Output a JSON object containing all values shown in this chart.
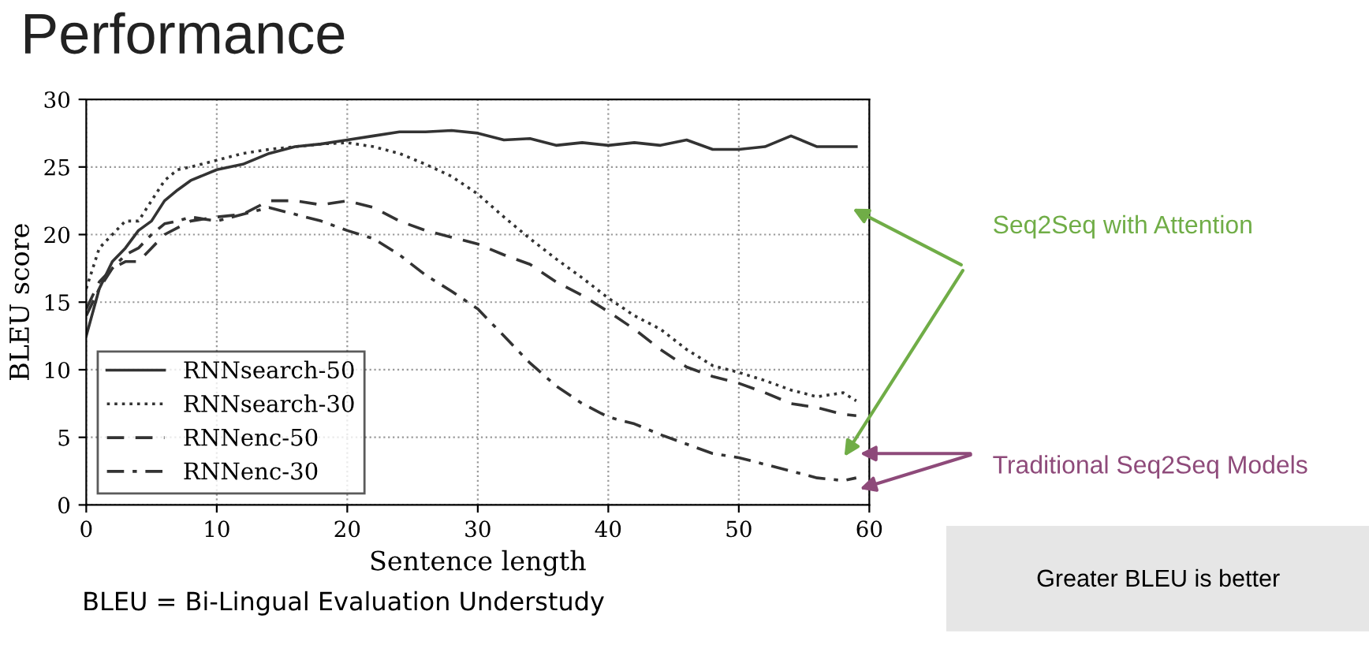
{
  "chart_data": {
    "type": "line",
    "title": "Performance",
    "xlabel": "Sentence length",
    "ylabel": "BLEU score",
    "x": [
      0,
      1,
      2,
      3,
      4,
      5,
      6,
      7,
      8,
      10,
      12,
      14,
      16,
      18,
      20,
      22,
      24,
      26,
      28,
      30,
      32,
      34,
      36,
      38,
      40,
      42,
      44,
      46,
      48,
      50,
      52,
      54,
      56,
      58,
      59
    ],
    "series": [
      {
        "name": "RNNsearch-50",
        "color": "#333333",
        "line_style": "solid",
        "values": [
          12.5,
          16,
          18,
          19,
          20.3,
          21,
          22.5,
          23.3,
          24,
          24.8,
          25.2,
          26,
          26.5,
          26.7,
          27,
          27.3,
          27.6,
          27.6,
          27.7,
          27.5,
          27.0,
          27.1,
          26.6,
          26.8,
          26.6,
          26.8,
          26.6,
          27,
          26.3,
          26.3,
          26.5,
          27.3,
          26.5,
          26.5,
          26.5
        ]
      },
      {
        "name": "RNNsearch-30",
        "color": "#333333",
        "line_style": "dotted",
        "values": [
          16,
          19,
          20,
          21,
          21,
          22.5,
          24,
          24.8,
          25,
          25.5,
          26,
          26.3,
          26.5,
          26.7,
          26.8,
          26.5,
          26,
          25.2,
          24.3,
          23,
          21.3,
          19.7,
          18.2,
          16.8,
          15.3,
          14,
          13,
          11.5,
          10.3,
          9.8,
          9.2,
          8.5,
          8,
          8.3,
          7.7
        ]
      },
      {
        "name": "RNNenc-50",
        "color": "#333333",
        "line_style": "dashed",
        "values": [
          14.5,
          16.5,
          17.5,
          18,
          18,
          19,
          20,
          20.5,
          21,
          21.3,
          21.5,
          22.5,
          22.5,
          22.2,
          22.5,
          22,
          21,
          20.3,
          19.8,
          19.3,
          18.5,
          17.8,
          16.5,
          15.5,
          14.3,
          13,
          11.5,
          10.2,
          9.5,
          9,
          8.3,
          7.5,
          7.2,
          6.7,
          6.6
        ]
      },
      {
        "name": "RNNenc-30",
        "color": "#333333",
        "line_style": "dashdot",
        "values": [
          14,
          16,
          17.5,
          18.5,
          19,
          20,
          20.8,
          21,
          21.3,
          21,
          21.5,
          22,
          21.5,
          21,
          20.3,
          19.7,
          18.5,
          17,
          15.8,
          14.5,
          12.5,
          10.5,
          8.8,
          7.5,
          6.5,
          6,
          5.2,
          4.5,
          3.8,
          3.5,
          3,
          2.5,
          2,
          1.8,
          2
        ]
      }
    ],
    "xlim": [
      0,
      60
    ],
    "xticks": [
      0,
      10,
      20,
      30,
      40,
      50,
      60
    ],
    "ylim": [
      0,
      30
    ],
    "yticks": [
      0,
      5,
      10,
      15,
      20,
      25,
      30
    ],
    "grid": true,
    "legend": "bottom left",
    "annotations": [
      "Seq2Seq with Attention",
      "Traditional Seq2Seq Models",
      "Greater BLEU is better",
      "BLEU = Bi-Lingual Evaluation Understudy"
    ]
  }
}
